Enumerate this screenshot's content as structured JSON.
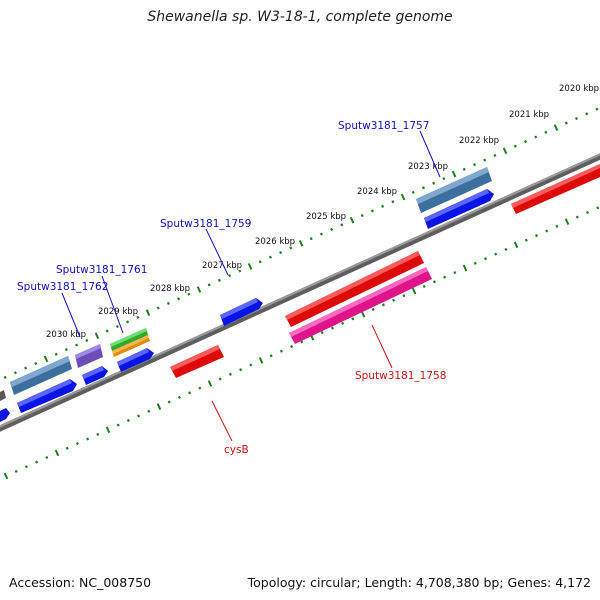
{
  "title": "Shewanella sp. W3-18-1, complete genome",
  "footer": {
    "accession": "Accession: NC_008750",
    "topology": "Topology: circular; Length: 4,708,380 bp; Genes: 4,172"
  },
  "scale": {
    "unit": "kbp",
    "ticks": [
      {
        "value": 2020,
        "label": "2020 kbp"
      },
      {
        "value": 2021,
        "label": "2021 kbp"
      },
      {
        "value": 2022,
        "label": "2022 kbp"
      },
      {
        "value": 2023,
        "label": "2023 kbp"
      },
      {
        "value": 2024,
        "label": "2024 kbp"
      },
      {
        "value": 2025,
        "label": "2025 kbp"
      },
      {
        "value": 2026,
        "label": "2026 kbp"
      },
      {
        "value": 2027,
        "label": "2027 kbp"
      },
      {
        "value": 2028,
        "label": "2028 kbp"
      },
      {
        "value": 2029,
        "label": "2029 kbp"
      },
      {
        "value": 2030,
        "label": "2030 kbp"
      }
    ]
  },
  "gene_labels": [
    {
      "text": "Sputw3181_1757",
      "color": "#1010c0"
    },
    {
      "text": "Sputw3181_1759",
      "color": "#1010c0"
    },
    {
      "text": "Sputw3181_1761",
      "color": "#1010c0"
    },
    {
      "text": "Sputw3181_1762",
      "color": "#1010c0"
    },
    {
      "text": "Sputw3181_1758",
      "color": "#cc1010"
    },
    {
      "text": "cysB",
      "color": "#cc1010"
    }
  ],
  "colors": {
    "cds": "#0a14e6",
    "gene_red": "#ee1111",
    "gene_pink": "#ee1f8f",
    "steelblue": "#4a82b8",
    "purple": "#7b5cc8",
    "green": "#30c030",
    "orange": "#f0960a",
    "backbone": "#808080",
    "dots": "#1e7d1e"
  }
}
